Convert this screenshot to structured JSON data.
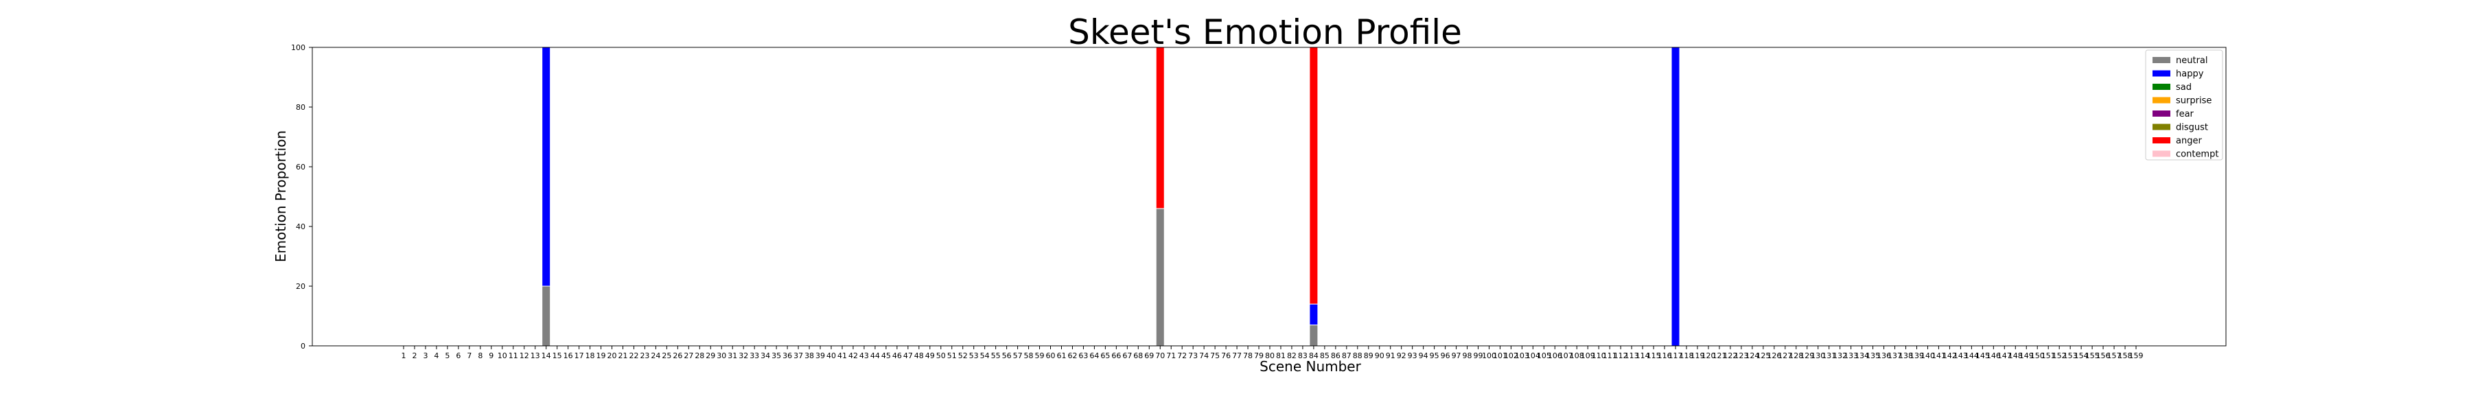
{
  "chart_data": {
    "type": "bar",
    "stacked": true,
    "title": "Skeet's Emotion Profile",
    "xlabel": "Scene Number",
    "ylabel": "Emotion Proportion",
    "ylim": [
      0,
      100
    ],
    "yticks": [
      0,
      20,
      40,
      60,
      80,
      100
    ],
    "x_start": 1,
    "x_end": 159,
    "grid": false,
    "legend_position": "top-right",
    "series_order": [
      "neutral",
      "happy",
      "sad",
      "surprise",
      "fear",
      "disgust",
      "anger",
      "contempt"
    ],
    "series": [
      {
        "name": "neutral",
        "color": "#808080"
      },
      {
        "name": "happy",
        "color": "#0000ff"
      },
      {
        "name": "sad",
        "color": "#008000"
      },
      {
        "name": "surprise",
        "color": "#ffa500"
      },
      {
        "name": "fear",
        "color": "#800080"
      },
      {
        "name": "disgust",
        "color": "#808000"
      },
      {
        "name": "anger",
        "color": "#ff0000"
      },
      {
        "name": "contempt",
        "color": "#ffc0cb"
      }
    ],
    "nonzero_scenes": [
      {
        "scene": 14,
        "values": {
          "neutral": 20,
          "happy": 80
        }
      },
      {
        "scene": 70,
        "values": {
          "neutral": 46,
          "anger": 54
        }
      },
      {
        "scene": 84,
        "values": {
          "neutral": 7,
          "happy": 7,
          "anger": 86
        }
      },
      {
        "scene": 117,
        "values": {
          "happy": 100
        }
      }
    ]
  }
}
